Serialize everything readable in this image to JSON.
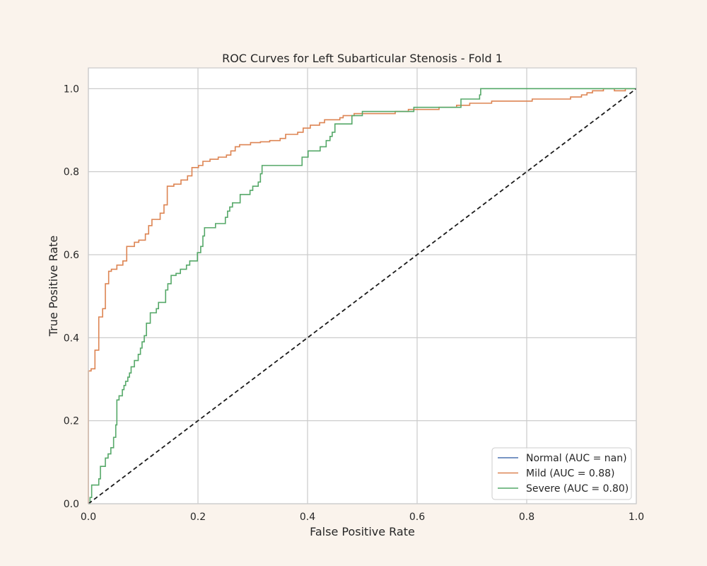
{
  "chart_data": {
    "type": "line",
    "title": "ROC Curves for Left Subarticular Stenosis - Fold 1",
    "xlabel": "False Positive Rate",
    "ylabel": "True Positive Rate",
    "xlim": [
      0.0,
      1.0
    ],
    "ylim": [
      0.0,
      1.05
    ],
    "x_ticks": [
      "0.0",
      "0.2",
      "0.4",
      "0.6",
      "0.8",
      "1.0"
    ],
    "y_ticks": [
      "0.0",
      "0.2",
      "0.4",
      "0.6",
      "0.8",
      "1.0"
    ],
    "grid": true,
    "legend_position": "bottom-right",
    "series": [
      {
        "name": "Normal (AUC = nan)",
        "color": "#4c72b0",
        "step": true,
        "points": []
      },
      {
        "name": "Mild (AUC = 0.88)",
        "color": "#dd8452",
        "step": true,
        "points": [
          [
            0,
            0
          ],
          [
            0,
            0.32
          ],
          [
            0.005,
            0.32
          ],
          [
            0.005,
            0.325
          ],
          [
            0.012,
            0.325
          ],
          [
            0.012,
            0.37
          ],
          [
            0.019,
            0.37
          ],
          [
            0.019,
            0.45
          ],
          [
            0.026,
            0.45
          ],
          [
            0.026,
            0.47
          ],
          [
            0.031,
            0.47
          ],
          [
            0.031,
            0.53
          ],
          [
            0.037,
            0.53
          ],
          [
            0.037,
            0.56
          ],
          [
            0.042,
            0.56
          ],
          [
            0.042,
            0.565
          ],
          [
            0.052,
            0.565
          ],
          [
            0.052,
            0.575
          ],
          [
            0.063,
            0.575
          ],
          [
            0.063,
            0.585
          ],
          [
            0.07,
            0.585
          ],
          [
            0.07,
            0.62
          ],
          [
            0.084,
            0.62
          ],
          [
            0.084,
            0.63
          ],
          [
            0.092,
            0.63
          ],
          [
            0.092,
            0.635
          ],
          [
            0.104,
            0.635
          ],
          [
            0.104,
            0.65
          ],
          [
            0.11,
            0.65
          ],
          [
            0.11,
            0.67
          ],
          [
            0.116,
            0.67
          ],
          [
            0.116,
            0.685
          ],
          [
            0.131,
            0.685
          ],
          [
            0.131,
            0.7
          ],
          [
            0.138,
            0.7
          ],
          [
            0.138,
            0.72
          ],
          [
            0.144,
            0.72
          ],
          [
            0.144,
            0.765
          ],
          [
            0.156,
            0.765
          ],
          [
            0.156,
            0.77
          ],
          [
            0.169,
            0.77
          ],
          [
            0.169,
            0.78
          ],
          [
            0.181,
            0.78
          ],
          [
            0.181,
            0.79
          ],
          [
            0.189,
            0.79
          ],
          [
            0.189,
            0.81
          ],
          [
            0.201,
            0.81
          ],
          [
            0.201,
            0.815
          ],
          [
            0.209,
            0.815
          ],
          [
            0.209,
            0.825
          ],
          [
            0.222,
            0.825
          ],
          [
            0.222,
            0.83
          ],
          [
            0.237,
            0.83
          ],
          [
            0.237,
            0.835
          ],
          [
            0.252,
            0.835
          ],
          [
            0.252,
            0.84
          ],
          [
            0.26,
            0.84
          ],
          [
            0.26,
            0.85
          ],
          [
            0.268,
            0.85
          ],
          [
            0.268,
            0.86
          ],
          [
            0.276,
            0.86
          ],
          [
            0.276,
            0.865
          ],
          [
            0.296,
            0.865
          ],
          [
            0.296,
            0.87
          ],
          [
            0.314,
            0.87
          ],
          [
            0.314,
            0.872
          ],
          [
            0.331,
            0.872
          ],
          [
            0.331,
            0.875
          ],
          [
            0.35,
            0.875
          ],
          [
            0.35,
            0.88
          ],
          [
            0.36,
            0.88
          ],
          [
            0.36,
            0.89
          ],
          [
            0.382,
            0.89
          ],
          [
            0.382,
            0.895
          ],
          [
            0.392,
            0.895
          ],
          [
            0.392,
            0.905
          ],
          [
            0.405,
            0.905
          ],
          [
            0.405,
            0.912
          ],
          [
            0.422,
            0.912
          ],
          [
            0.422,
            0.918
          ],
          [
            0.431,
            0.918
          ],
          [
            0.431,
            0.925
          ],
          [
            0.459,
            0.925
          ],
          [
            0.459,
            0.93
          ],
          [
            0.465,
            0.93
          ],
          [
            0.465,
            0.935
          ],
          [
            0.485,
            0.935
          ],
          [
            0.485,
            0.94
          ],
          [
            0.56,
            0.94
          ],
          [
            0.56,
            0.945
          ],
          [
            0.584,
            0.945
          ],
          [
            0.584,
            0.95
          ],
          [
            0.64,
            0.95
          ],
          [
            0.64,
            0.955
          ],
          [
            0.672,
            0.955
          ],
          [
            0.672,
            0.96
          ],
          [
            0.696,
            0.96
          ],
          [
            0.696,
            0.965
          ],
          [
            0.736,
            0.965
          ],
          [
            0.736,
            0.97
          ],
          [
            0.81,
            0.97
          ],
          [
            0.81,
            0.975
          ],
          [
            0.88,
            0.975
          ],
          [
            0.88,
            0.98
          ],
          [
            0.9,
            0.98
          ],
          [
            0.9,
            0.985
          ],
          [
            0.91,
            0.985
          ],
          [
            0.91,
            0.99
          ],
          [
            0.92,
            0.99
          ],
          [
            0.92,
            0.995
          ],
          [
            0.94,
            0.995
          ],
          [
            0.94,
            1.0
          ],
          [
            0.96,
            1.0
          ],
          [
            0.96,
            0.995
          ],
          [
            0.98,
            0.995
          ],
          [
            0.98,
            1.0
          ],
          [
            1.0,
            1.0
          ]
        ]
      },
      {
        "name": "Severe (AUC = 0.80)",
        "color": "#55a868",
        "step": true,
        "points": [
          [
            0,
            0
          ],
          [
            0.003,
            0
          ],
          [
            0.003,
            0.015
          ],
          [
            0.006,
            0.015
          ],
          [
            0.006,
            0.045
          ],
          [
            0.019,
            0.045
          ],
          [
            0.019,
            0.06
          ],
          [
            0.022,
            0.06
          ],
          [
            0.022,
            0.09
          ],
          [
            0.031,
            0.09
          ],
          [
            0.031,
            0.11
          ],
          [
            0.036,
            0.11
          ],
          [
            0.036,
            0.12
          ],
          [
            0.041,
            0.12
          ],
          [
            0.041,
            0.135
          ],
          [
            0.046,
            0.135
          ],
          [
            0.046,
            0.16
          ],
          [
            0.05,
            0.16
          ],
          [
            0.05,
            0.19
          ],
          [
            0.052,
            0.19
          ],
          [
            0.052,
            0.25
          ],
          [
            0.056,
            0.25
          ],
          [
            0.056,
            0.26
          ],
          [
            0.062,
            0.26
          ],
          [
            0.062,
            0.275
          ],
          [
            0.065,
            0.275
          ],
          [
            0.065,
            0.285
          ],
          [
            0.068,
            0.285
          ],
          [
            0.068,
            0.295
          ],
          [
            0.072,
            0.295
          ],
          [
            0.072,
            0.305
          ],
          [
            0.075,
            0.305
          ],
          [
            0.075,
            0.315
          ],
          [
            0.078,
            0.315
          ],
          [
            0.078,
            0.33
          ],
          [
            0.084,
            0.33
          ],
          [
            0.084,
            0.345
          ],
          [
            0.091,
            0.345
          ],
          [
            0.091,
            0.36
          ],
          [
            0.095,
            0.36
          ],
          [
            0.095,
            0.375
          ],
          [
            0.098,
            0.375
          ],
          [
            0.098,
            0.39
          ],
          [
            0.102,
            0.39
          ],
          [
            0.102,
            0.405
          ],
          [
            0.106,
            0.405
          ],
          [
            0.106,
            0.435
          ],
          [
            0.113,
            0.435
          ],
          [
            0.113,
            0.46
          ],
          [
            0.124,
            0.46
          ],
          [
            0.124,
            0.47
          ],
          [
            0.128,
            0.47
          ],
          [
            0.128,
            0.485
          ],
          [
            0.141,
            0.485
          ],
          [
            0.141,
            0.515
          ],
          [
            0.145,
            0.515
          ],
          [
            0.145,
            0.53
          ],
          [
            0.151,
            0.53
          ],
          [
            0.151,
            0.55
          ],
          [
            0.16,
            0.55
          ],
          [
            0.16,
            0.555
          ],
          [
            0.168,
            0.555
          ],
          [
            0.168,
            0.565
          ],
          [
            0.179,
            0.565
          ],
          [
            0.179,
            0.575
          ],
          [
            0.185,
            0.575
          ],
          [
            0.185,
            0.585
          ],
          [
            0.199,
            0.585
          ],
          [
            0.199,
            0.605
          ],
          [
            0.205,
            0.605
          ],
          [
            0.205,
            0.62
          ],
          [
            0.209,
            0.62
          ],
          [
            0.209,
            0.645
          ],
          [
            0.212,
            0.645
          ],
          [
            0.212,
            0.665
          ],
          [
            0.232,
            0.665
          ],
          [
            0.232,
            0.675
          ],
          [
            0.25,
            0.675
          ],
          [
            0.25,
            0.69
          ],
          [
            0.254,
            0.69
          ],
          [
            0.254,
            0.705
          ],
          [
            0.258,
            0.705
          ],
          [
            0.258,
            0.715
          ],
          [
            0.263,
            0.715
          ],
          [
            0.263,
            0.725
          ],
          [
            0.277,
            0.725
          ],
          [
            0.277,
            0.745
          ],
          [
            0.295,
            0.745
          ],
          [
            0.295,
            0.755
          ],
          [
            0.3,
            0.755
          ],
          [
            0.3,
            0.765
          ],
          [
            0.31,
            0.765
          ],
          [
            0.31,
            0.775
          ],
          [
            0.314,
            0.775
          ],
          [
            0.314,
            0.795
          ],
          [
            0.317,
            0.795
          ],
          [
            0.317,
            0.815
          ],
          [
            0.39,
            0.815
          ],
          [
            0.39,
            0.835
          ],
          [
            0.401,
            0.835
          ],
          [
            0.401,
            0.85
          ],
          [
            0.423,
            0.85
          ],
          [
            0.423,
            0.86
          ],
          [
            0.434,
            0.86
          ],
          [
            0.434,
            0.875
          ],
          [
            0.441,
            0.875
          ],
          [
            0.441,
            0.885
          ],
          [
            0.445,
            0.885
          ],
          [
            0.445,
            0.895
          ],
          [
            0.45,
            0.895
          ],
          [
            0.45,
            0.915
          ],
          [
            0.481,
            0.915
          ],
          [
            0.481,
            0.935
          ],
          [
            0.5,
            0.935
          ],
          [
            0.5,
            0.945
          ],
          [
            0.594,
            0.945
          ],
          [
            0.594,
            0.955
          ],
          [
            0.68,
            0.955
          ],
          [
            0.68,
            0.975
          ],
          [
            0.714,
            0.975
          ],
          [
            0.714,
            0.985
          ],
          [
            0.716,
            0.985
          ],
          [
            0.716,
            1.0
          ],
          [
            1.0,
            1.0
          ]
        ]
      },
      {
        "name": "",
        "color": "#1a1a1a",
        "dashed": true,
        "points": [
          [
            0,
            0
          ],
          [
            1,
            1
          ]
        ]
      }
    ]
  }
}
